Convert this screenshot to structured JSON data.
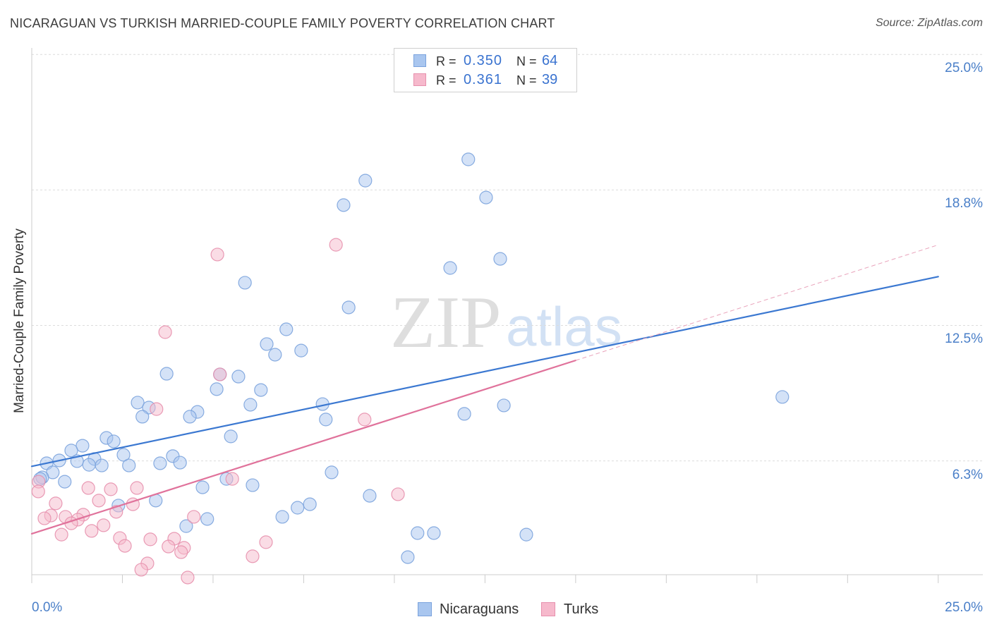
{
  "source": "Source: ZipAtlas.com",
  "watermark": {
    "zip": "ZIP",
    "atlas": "atlas"
  },
  "legend": {
    "r_label": "R =",
    "n_label": "N ="
  },
  "chart_data": {
    "type": "scatter",
    "title": "NICARAGUAN VS TURKISH MARRIED-COUPLE FAMILY POVERTY CORRELATION CHART",
    "ylabel": "Married-Couple Family Poverty",
    "xlim": [
      0,
      26.23
    ],
    "ylim": [
      1.0,
      25.3
    ],
    "grid": true,
    "x_ticks": [
      0,
      2.5,
      5,
      7.5,
      10,
      12.5,
      15,
      17.5,
      20,
      22.5,
      25
    ],
    "x_tick_labels": {
      "min": "0.0%",
      "max": "25.0%"
    },
    "y_ticks": [
      {
        "value": 6.25,
        "label": "6.3%"
      },
      {
        "value": 12.5,
        "label": "12.5%"
      },
      {
        "value": 18.75,
        "label": "18.8%"
      },
      {
        "value": 25,
        "label": "25.0%"
      }
    ],
    "series": [
      {
        "name": "Nicaraguans",
        "r": "0.350",
        "n": "64",
        "fill": "#a9c6ef",
        "stroke": "#7ba3dd",
        "line_color": "#3b78d1",
        "trend": {
          "intercept": 6.0,
          "slope": 0.35,
          "solid_to": 25
        },
        "points": [
          [
            12.04,
            20.16
          ],
          [
            9.2,
            19.18
          ],
          [
            12.53,
            18.4
          ],
          [
            8.6,
            18.05
          ],
          [
            12.92,
            15.57
          ],
          [
            11.54,
            15.15
          ],
          [
            5.88,
            14.47
          ],
          [
            8.74,
            13.33
          ],
          [
            7.02,
            12.32
          ],
          [
            6.48,
            11.64
          ],
          [
            7.43,
            11.34
          ],
          [
            6.71,
            11.15
          ],
          [
            3.72,
            10.27
          ],
          [
            5.19,
            10.24
          ],
          [
            5.7,
            10.14
          ],
          [
            5.1,
            9.56
          ],
          [
            6.32,
            9.52
          ],
          [
            20.7,
            9.2
          ],
          [
            2.92,
            8.94
          ],
          [
            6.03,
            8.84
          ],
          [
            8.02,
            8.87
          ],
          [
            13.02,
            8.81
          ],
          [
            3.23,
            8.71
          ],
          [
            4.57,
            8.51
          ],
          [
            4.36,
            8.29
          ],
          [
            3.05,
            8.29
          ],
          [
            11.93,
            8.42
          ],
          [
            8.11,
            8.16
          ],
          [
            2.06,
            7.31
          ],
          [
            5.49,
            7.38
          ],
          [
            2.26,
            7.15
          ],
          [
            1.4,
            6.95
          ],
          [
            1.09,
            6.73
          ],
          [
            2.53,
            6.53
          ],
          [
            3.89,
            6.47
          ],
          [
            1.73,
            6.34
          ],
          [
            0.76,
            6.27
          ],
          [
            1.25,
            6.24
          ],
          [
            0.41,
            6.14
          ],
          [
            4.09,
            6.17
          ],
          [
            3.54,
            6.14
          ],
          [
            1.58,
            6.07
          ],
          [
            1.93,
            6.04
          ],
          [
            2.68,
            6.04
          ],
          [
            0.58,
            5.72
          ],
          [
            8.27,
            5.72
          ],
          [
            0.29,
            5.49
          ],
          [
            0.23,
            5.42
          ],
          [
            0.91,
            5.29
          ],
          [
            5.37,
            5.42
          ],
          [
            6.09,
            5.13
          ],
          [
            4.71,
            5.03
          ],
          [
            9.32,
            4.64
          ],
          [
            3.42,
            4.42
          ],
          [
            2.39,
            4.19
          ],
          [
            7.67,
            4.25
          ],
          [
            7.33,
            4.09
          ],
          [
            6.91,
            3.67
          ],
          [
            4.84,
            3.57
          ],
          [
            4.26,
            3.24
          ],
          [
            10.64,
            2.92
          ],
          [
            11.09,
            2.92
          ],
          [
            13.64,
            2.85
          ],
          [
            10.37,
            1.81
          ]
        ]
      },
      {
        "name": "Turks",
        "r": "0.361",
        "n": "39",
        "fill": "#f6b9cc",
        "stroke": "#e790ad",
        "line_color": "#e0729b",
        "dash_color": "#e9a3bb",
        "trend": {
          "intercept": 2.89,
          "slope": 0.533,
          "solid_to": 15,
          "dashed_to": 25
        },
        "points": [
          [
            8.39,
            16.22
          ],
          [
            5.12,
            15.77
          ],
          [
            3.68,
            12.19
          ],
          [
            5.19,
            10.24
          ],
          [
            3.44,
            8.64
          ],
          [
            9.18,
            8.16
          ],
          [
            5.53,
            5.42
          ],
          [
            0.19,
            5.29
          ],
          [
            0.18,
            4.84
          ],
          [
            1.56,
            5.0
          ],
          [
            2.18,
            4.94
          ],
          [
            2.9,
            5.0
          ],
          [
            10.1,
            4.71
          ],
          [
            1.85,
            4.42
          ],
          [
            0.66,
            4.29
          ],
          [
            2.79,
            4.25
          ],
          [
            2.33,
            3.9
          ],
          [
            1.42,
            3.77
          ],
          [
            0.53,
            3.73
          ],
          [
            0.93,
            3.67
          ],
          [
            0.35,
            3.6
          ],
          [
            1.27,
            3.54
          ],
          [
            4.47,
            3.67
          ],
          [
            1.09,
            3.37
          ],
          [
            1.98,
            3.28
          ],
          [
            1.65,
            3.02
          ],
          [
            0.82,
            2.85
          ],
          [
            2.43,
            2.69
          ],
          [
            3.27,
            2.63
          ],
          [
            3.93,
            2.66
          ],
          [
            6.46,
            2.5
          ],
          [
            2.57,
            2.33
          ],
          [
            3.77,
            2.3
          ],
          [
            4.2,
            2.24
          ],
          [
            4.12,
            2.04
          ],
          [
            6.09,
            1.85
          ],
          [
            3.19,
            1.52
          ],
          [
            3.02,
            1.23
          ],
          [
            4.3,
            0.87
          ]
        ]
      }
    ]
  }
}
